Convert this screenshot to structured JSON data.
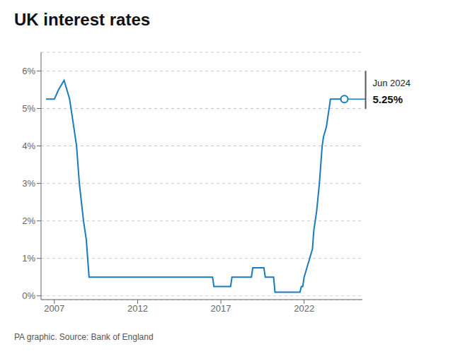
{
  "chart_data": {
    "type": "line",
    "title": "UK interest rates",
    "source": "PA graphic. Source: Bank of England",
    "color": "#1a7abf",
    "annotations": [
      {
        "text": "Jun 2024"
      },
      {
        "text": "5.25%"
      }
    ],
    "xlim": [
      2006.2,
      2025.5
    ],
    "xticks": [
      2007,
      2012,
      2017,
      2022
    ],
    "ylim": [
      -0.1,
      6.5
    ],
    "yticks": [
      {
        "value": 0,
        "label": "0%"
      },
      {
        "value": 1,
        "label": "1%"
      },
      {
        "value": 2,
        "label": "2%"
      },
      {
        "value": 3,
        "label": "3%"
      },
      {
        "value": 4,
        "label": "4%"
      },
      {
        "value": 5,
        "label": "5%"
      },
      {
        "value": 6,
        "label": "6%"
      }
    ],
    "grid": "y",
    "x": [
      2006.5,
      2007.0,
      2007.25,
      2007.583,
      2007.75,
      2007.917,
      2008.0,
      2008.167,
      2008.333,
      2008.5,
      2008.75,
      2008.917,
      2009.0,
      2009.083,
      2009.25,
      2016.5,
      2016.583,
      2017.583,
      2017.667,
      2018.833,
      2018.917,
      2019.583,
      2019.667,
      2020.167,
      2020.25,
      2021.75,
      2021.833,
      2021.917,
      2022.0,
      2022.167,
      2022.333,
      2022.5,
      2022.583,
      2022.75,
      2022.917,
      2023.0,
      2023.083,
      2023.167,
      2023.333,
      2023.5,
      2023.583,
      2024.417
    ],
    "values": [
      5.25,
      5.25,
      5.5,
      5.75,
      5.5,
      5.25,
      5.0,
      4.5,
      4.0,
      3.0,
      2.0,
      1.5,
      1.0,
      0.5,
      0.5,
      0.5,
      0.25,
      0.25,
      0.5,
      0.5,
      0.75,
      0.75,
      0.5,
      0.5,
      0.1,
      0.1,
      0.25,
      0.25,
      0.5,
      0.75,
      1.0,
      1.25,
      1.75,
      2.25,
      3.0,
      3.5,
      4.0,
      4.25,
      4.5,
      5.0,
      5.25,
      5.25
    ]
  }
}
